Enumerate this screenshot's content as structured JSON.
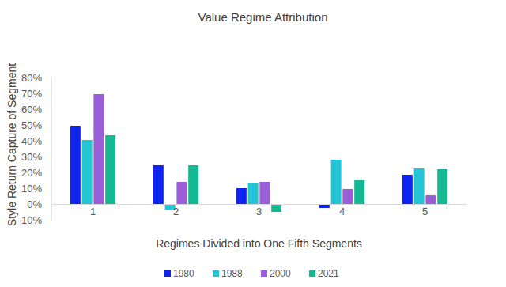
{
  "chart_data": {
    "type": "bar",
    "title": "Value Regime Attribution",
    "x_label": "Regimes Divided into One Fifth Segments",
    "y_label": "Style Return Capture of Segment",
    "categories": [
      "1",
      "2",
      "3",
      "4",
      "5"
    ],
    "series": [
      {
        "name": "1980",
        "color": "#0f24f0",
        "values": [
          49.5,
          24.5,
          10,
          -2.5,
          18.5
        ]
      },
      {
        "name": "1988",
        "color": "#22c4d6",
        "values": [
          40.5,
          -3.5,
          13,
          28,
          22.5
        ]
      },
      {
        "name": "2000",
        "color": "#9a5fd6",
        "values": [
          69.5,
          14,
          14,
          9.5,
          5.5
        ]
      },
      {
        "name": "2021",
        "color": "#16b894",
        "values": [
          43.5,
          24.5,
          -5,
          15,
          22
        ]
      }
    ],
    "ylim": [
      -10,
      80
    ],
    "yticks": [
      {
        "value": -10,
        "label": "-10%"
      },
      {
        "value": 0,
        "label": "0%"
      },
      {
        "value": 10,
        "label": "10%"
      },
      {
        "value": 20,
        "label": "20%"
      },
      {
        "value": 30,
        "label": "30%"
      },
      {
        "value": 40,
        "label": "40%"
      },
      {
        "value": 50,
        "label": "50%"
      },
      {
        "value": 60,
        "label": "60%"
      },
      {
        "value": 70,
        "label": "70%"
      },
      {
        "value": 80,
        "label": "80%"
      }
    ],
    "grid": false,
    "legend": "bottom"
  }
}
